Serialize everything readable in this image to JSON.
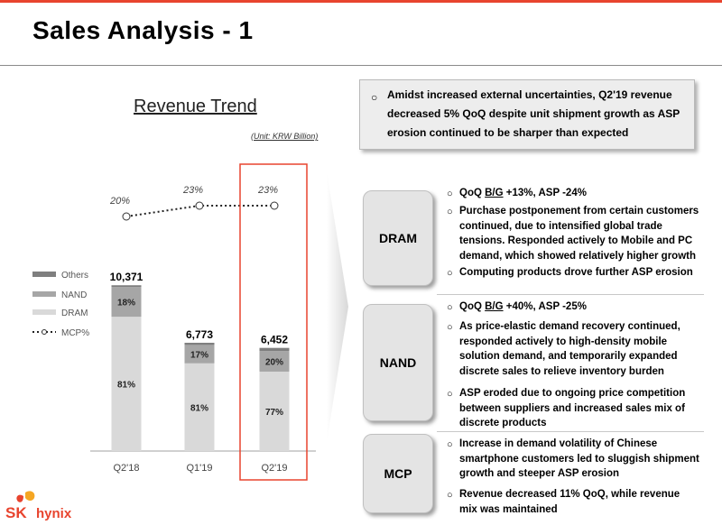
{
  "page": {
    "title": "Sales Analysis - 1"
  },
  "chart_data": {
    "type": "bar",
    "title": "Revenue Trend",
    "unit": "(Unit: KRW Billion)",
    "categories": [
      "Q2'18",
      "Q1'19",
      "Q2'19"
    ],
    "totals": [
      10371,
      6773,
      6452
    ],
    "total_labels": [
      "10,371",
      "6,773",
      "6,452"
    ],
    "series": [
      {
        "name": "DRAM",
        "values": [
          81,
          81,
          77
        ],
        "labels": [
          "81%",
          "81%",
          "77%"
        ],
        "color": "#d9d9d9"
      },
      {
        "name": "NAND",
        "values": [
          18,
          17,
          20
        ],
        "labels": [
          "18%",
          "17%",
          "20%"
        ],
        "color": "#a6a6a6"
      },
      {
        "name": "Others",
        "values": [
          1,
          2,
          3
        ],
        "labels": [
          "",
          "",
          ""
        ],
        "color": "#7f7f7f"
      }
    ],
    "line": {
      "name": "MCP%",
      "values": [
        20,
        23,
        23
      ],
      "labels": [
        "20%",
        "23%",
        "23%"
      ]
    },
    "legend": [
      "Others",
      "NAND",
      "DRAM",
      "MCP%"
    ],
    "highlight_category": "Q2'19",
    "highlight_color": "#e8442e"
  },
  "callout": {
    "bullet": "○",
    "text": "Amidst increased external uncertainties, Q2'19 revenue decreased 5% QoQ despite unit shipment growth as ASP erosion continued to be sharper than expected"
  },
  "segments": {
    "dram": {
      "label": "DRAM",
      "b1_pre": "QoQ ",
      "b1_u": "B/G",
      "b1_post": " +13%, ASP -24%",
      "b2": "Purchase postponement from certain customers continued, due to intensified global trade tensions. Responded actively to Mobile and PC demand, which showed relatively higher growth",
      "b3": "Computing products drove further ASP erosion"
    },
    "nand": {
      "label": "NAND",
      "b1_pre": "QoQ ",
      "b1_u": "B/G",
      "b1_post": " +40%, ASP -25%",
      "b2": "As price-elastic demand recovery continued, responded actively to high-density mobile solution demand, and temporarily expanded discrete sales to relieve inventory burden",
      "b3": "ASP eroded due to ongoing price competition between suppliers and increased sales mix of discrete products"
    },
    "mcp": {
      "label": "MCP",
      "b1": "Increase in demand volatility of Chinese smartphone customers led to sluggish shipment growth and steeper ASP erosion",
      "b2": "Revenue decreased 11% QoQ, while revenue mix was maintained"
    }
  },
  "bullet_symbol": "○",
  "logo": {
    "sk": "SK",
    "hynix": "hynix",
    "accent": "#e8442e",
    "accent2": "#f5a623"
  }
}
